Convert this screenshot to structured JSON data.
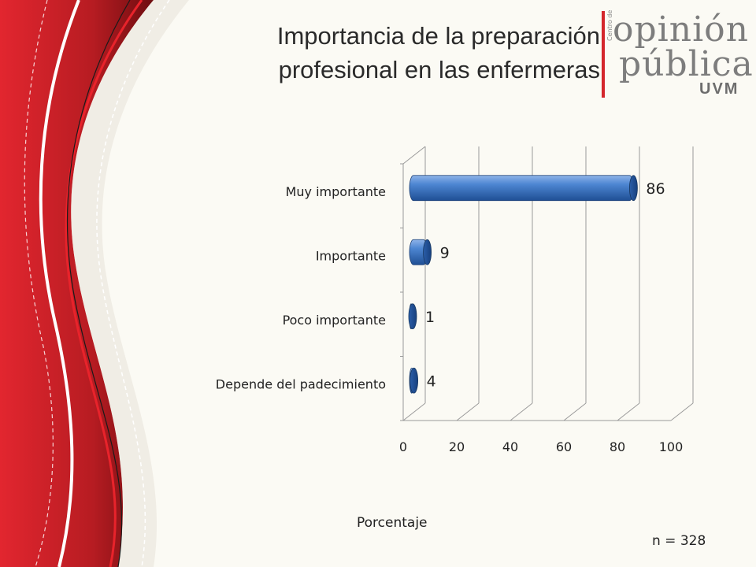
{
  "slide": {
    "title_lines": [
      "Importancia de la preparación",
      "profesional en las enfermeras"
    ],
    "note": "n = 328",
    "logo": {
      "line1": "opinión",
      "line2": "pública",
      "small": "Centro de",
      "uvm": "UVM",
      "accent_color": "#d4262c"
    }
  },
  "chart_data": {
    "type": "bar",
    "orientation": "horizontal",
    "categories": [
      "Muy importante",
      "Importante",
      "Poco importante",
      "Depende del padecimiento"
    ],
    "values": [
      86,
      9,
      1,
      4
    ],
    "data_labels": [
      "86",
      "9",
      "1",
      "4"
    ],
    "xlabel": "Porcentaje",
    "xlim": [
      0,
      100
    ],
    "x_ticks": [
      0,
      20,
      40,
      60,
      80,
      100
    ],
    "grid": true,
    "legend": "none",
    "bar_color": "#3d76c4"
  }
}
